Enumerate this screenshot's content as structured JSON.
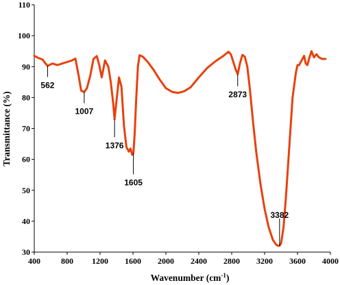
{
  "chart_data": {
    "type": "line",
    "xlabel": "Wavenumber (cm",
    "xlabel_sup": "-1",
    "xlabel_tail": ")",
    "ylabel": "Transmittance (%)",
    "xlim": [
      400,
      4000
    ],
    "ylim": [
      30,
      110
    ],
    "xticks": [
      400,
      800,
      1200,
      1600,
      2000,
      2400,
      2800,
      3200,
      3600,
      4000
    ],
    "yticks": [
      30,
      40,
      50,
      60,
      70,
      80,
      90,
      100,
      110
    ],
    "grid": false,
    "line_color": "#e8400c",
    "series": [
      {
        "x": [
          400,
          450,
          500,
          562,
          620,
          680,
          740,
          800,
          860,
          900,
          940,
          970,
          1007,
          1040,
          1080,
          1120,
          1160,
          1190,
          1220,
          1260,
          1300,
          1330,
          1360,
          1376,
          1400,
          1430,
          1460,
          1490,
          1520,
          1550,
          1570,
          1590,
          1605,
          1620,
          1640,
          1660,
          1680,
          1720,
          1780,
          1850,
          1920,
          2000,
          2080,
          2150,
          2220,
          2300,
          2400,
          2500,
          2600,
          2700,
          2760,
          2790,
          2820,
          2850,
          2873,
          2900,
          2930,
          2960,
          2990,
          3020,
          3060,
          3100,
          3150,
          3200,
          3250,
          3300,
          3340,
          3370,
          3382,
          3400,
          3430,
          3460,
          3500,
          3540,
          3580,
          3600,
          3620,
          3650,
          3680,
          3700,
          3720,
          3740,
          3770,
          3800,
          3830,
          3860,
          3900,
          3940
        ],
        "y": [
          93.5,
          92.8,
          92.3,
          90.2,
          91,
          90.5,
          91,
          91.5,
          92,
          92.6,
          87,
          82.2,
          81.8,
          83,
          87,
          92.5,
          93.4,
          90.5,
          86.5,
          92,
          90,
          85,
          78,
          73,
          79,
          86.5,
          83.5,
          71,
          64,
          62.5,
          63.5,
          61.5,
          62,
          68,
          80,
          90,
          93.7,
          93.2,
          91.5,
          89,
          86,
          83,
          81.8,
          81.5,
          82,
          83.3,
          86.5,
          89.5,
          91.7,
          93.5,
          94.8,
          94,
          91.5,
          89,
          87.5,
          91,
          93.8,
          93.2,
          90,
          83,
          72,
          62,
          52,
          44,
          38,
          34,
          32.4,
          32,
          32.1,
          32.8,
          38,
          48,
          64,
          80,
          88,
          90.5,
          90.5,
          92,
          93.5,
          91,
          90.5,
          92.5,
          95,
          93,
          94,
          93,
          92.5,
          92.5
        ]
      }
    ],
    "annotations": [
      {
        "text": "562",
        "x": 562,
        "y": 90.2,
        "label_y": 84
      },
      {
        "text": "1007",
        "x": 1007,
        "y": 81.8,
        "label_y": 75.5
      },
      {
        "text": "1376",
        "x": 1376,
        "y": 73,
        "label_y": 64.5
      },
      {
        "text": "1605",
        "x": 1605,
        "y": 62,
        "label_y": 52.5
      },
      {
        "text": "2873",
        "x": 2873,
        "y": 87.5,
        "label_y": 81
      },
      {
        "text": "3382",
        "x": 3382,
        "y": 32,
        "label_y": 42
      }
    ]
  }
}
